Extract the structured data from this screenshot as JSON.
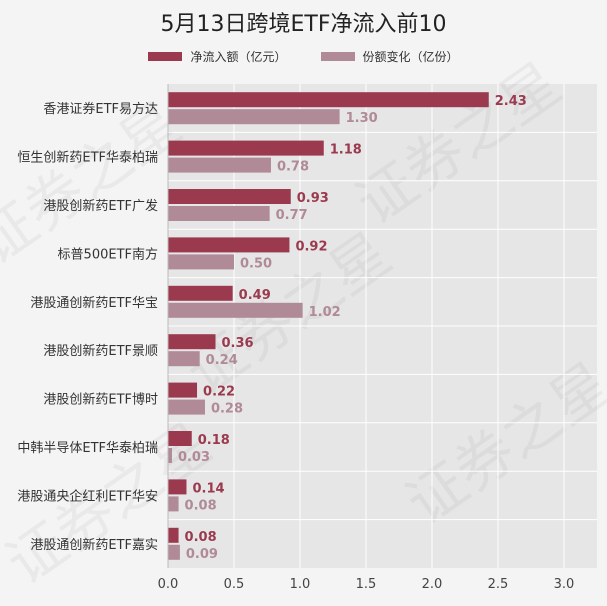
{
  "chart_data": {
    "type": "bar",
    "orientation": "horizontal",
    "title": "5月13日跨境ETF净流入前10",
    "categories": [
      "香港证券ETF易方达",
      "恒生创新药ETF华泰柏瑞",
      "港股创新药ETF广发",
      "标普500ETF南方",
      "港股通创新药ETF华宝",
      "港股创新药ETF景顺",
      "港股创新药ETF博时",
      "中韩半导体ETF华泰柏瑞",
      "港股通央企红利ETF华安",
      "港股通创新药ETF嘉实"
    ],
    "series": [
      {
        "name": "净流入额（亿元）",
        "color": "#9b3a4f",
        "values": [
          2.43,
          1.18,
          0.93,
          0.92,
          0.49,
          0.36,
          0.22,
          0.18,
          0.14,
          0.08
        ],
        "labels": [
          "2.43",
          "1.18",
          "0.93",
          "0.92",
          "0.49",
          "0.36",
          "0.22",
          "0.18",
          "0.14",
          "0.08"
        ]
      },
      {
        "name": "份额变化（亿份）",
        "color": "#b08a96",
        "values": [
          1.3,
          0.78,
          0.77,
          0.5,
          1.02,
          0.24,
          0.28,
          0.03,
          0.08,
          0.09
        ],
        "labels": [
          "1.30",
          "0.78",
          "0.77",
          "0.50",
          "1.02",
          "0.24",
          "0.28",
          "0.03",
          "0.08",
          "0.09"
        ]
      }
    ],
    "xlim": [
      0,
      3.25
    ],
    "xticks": [
      0,
      0.5,
      1,
      1.5,
      2,
      2.5,
      3
    ],
    "xtick_labels": [
      "0.0",
      "0.5",
      "1.0",
      "1.5",
      "2.0",
      "2.5",
      "3.0"
    ],
    "grid": true,
    "legend_position": "top-center"
  },
  "watermark": "证券之星"
}
